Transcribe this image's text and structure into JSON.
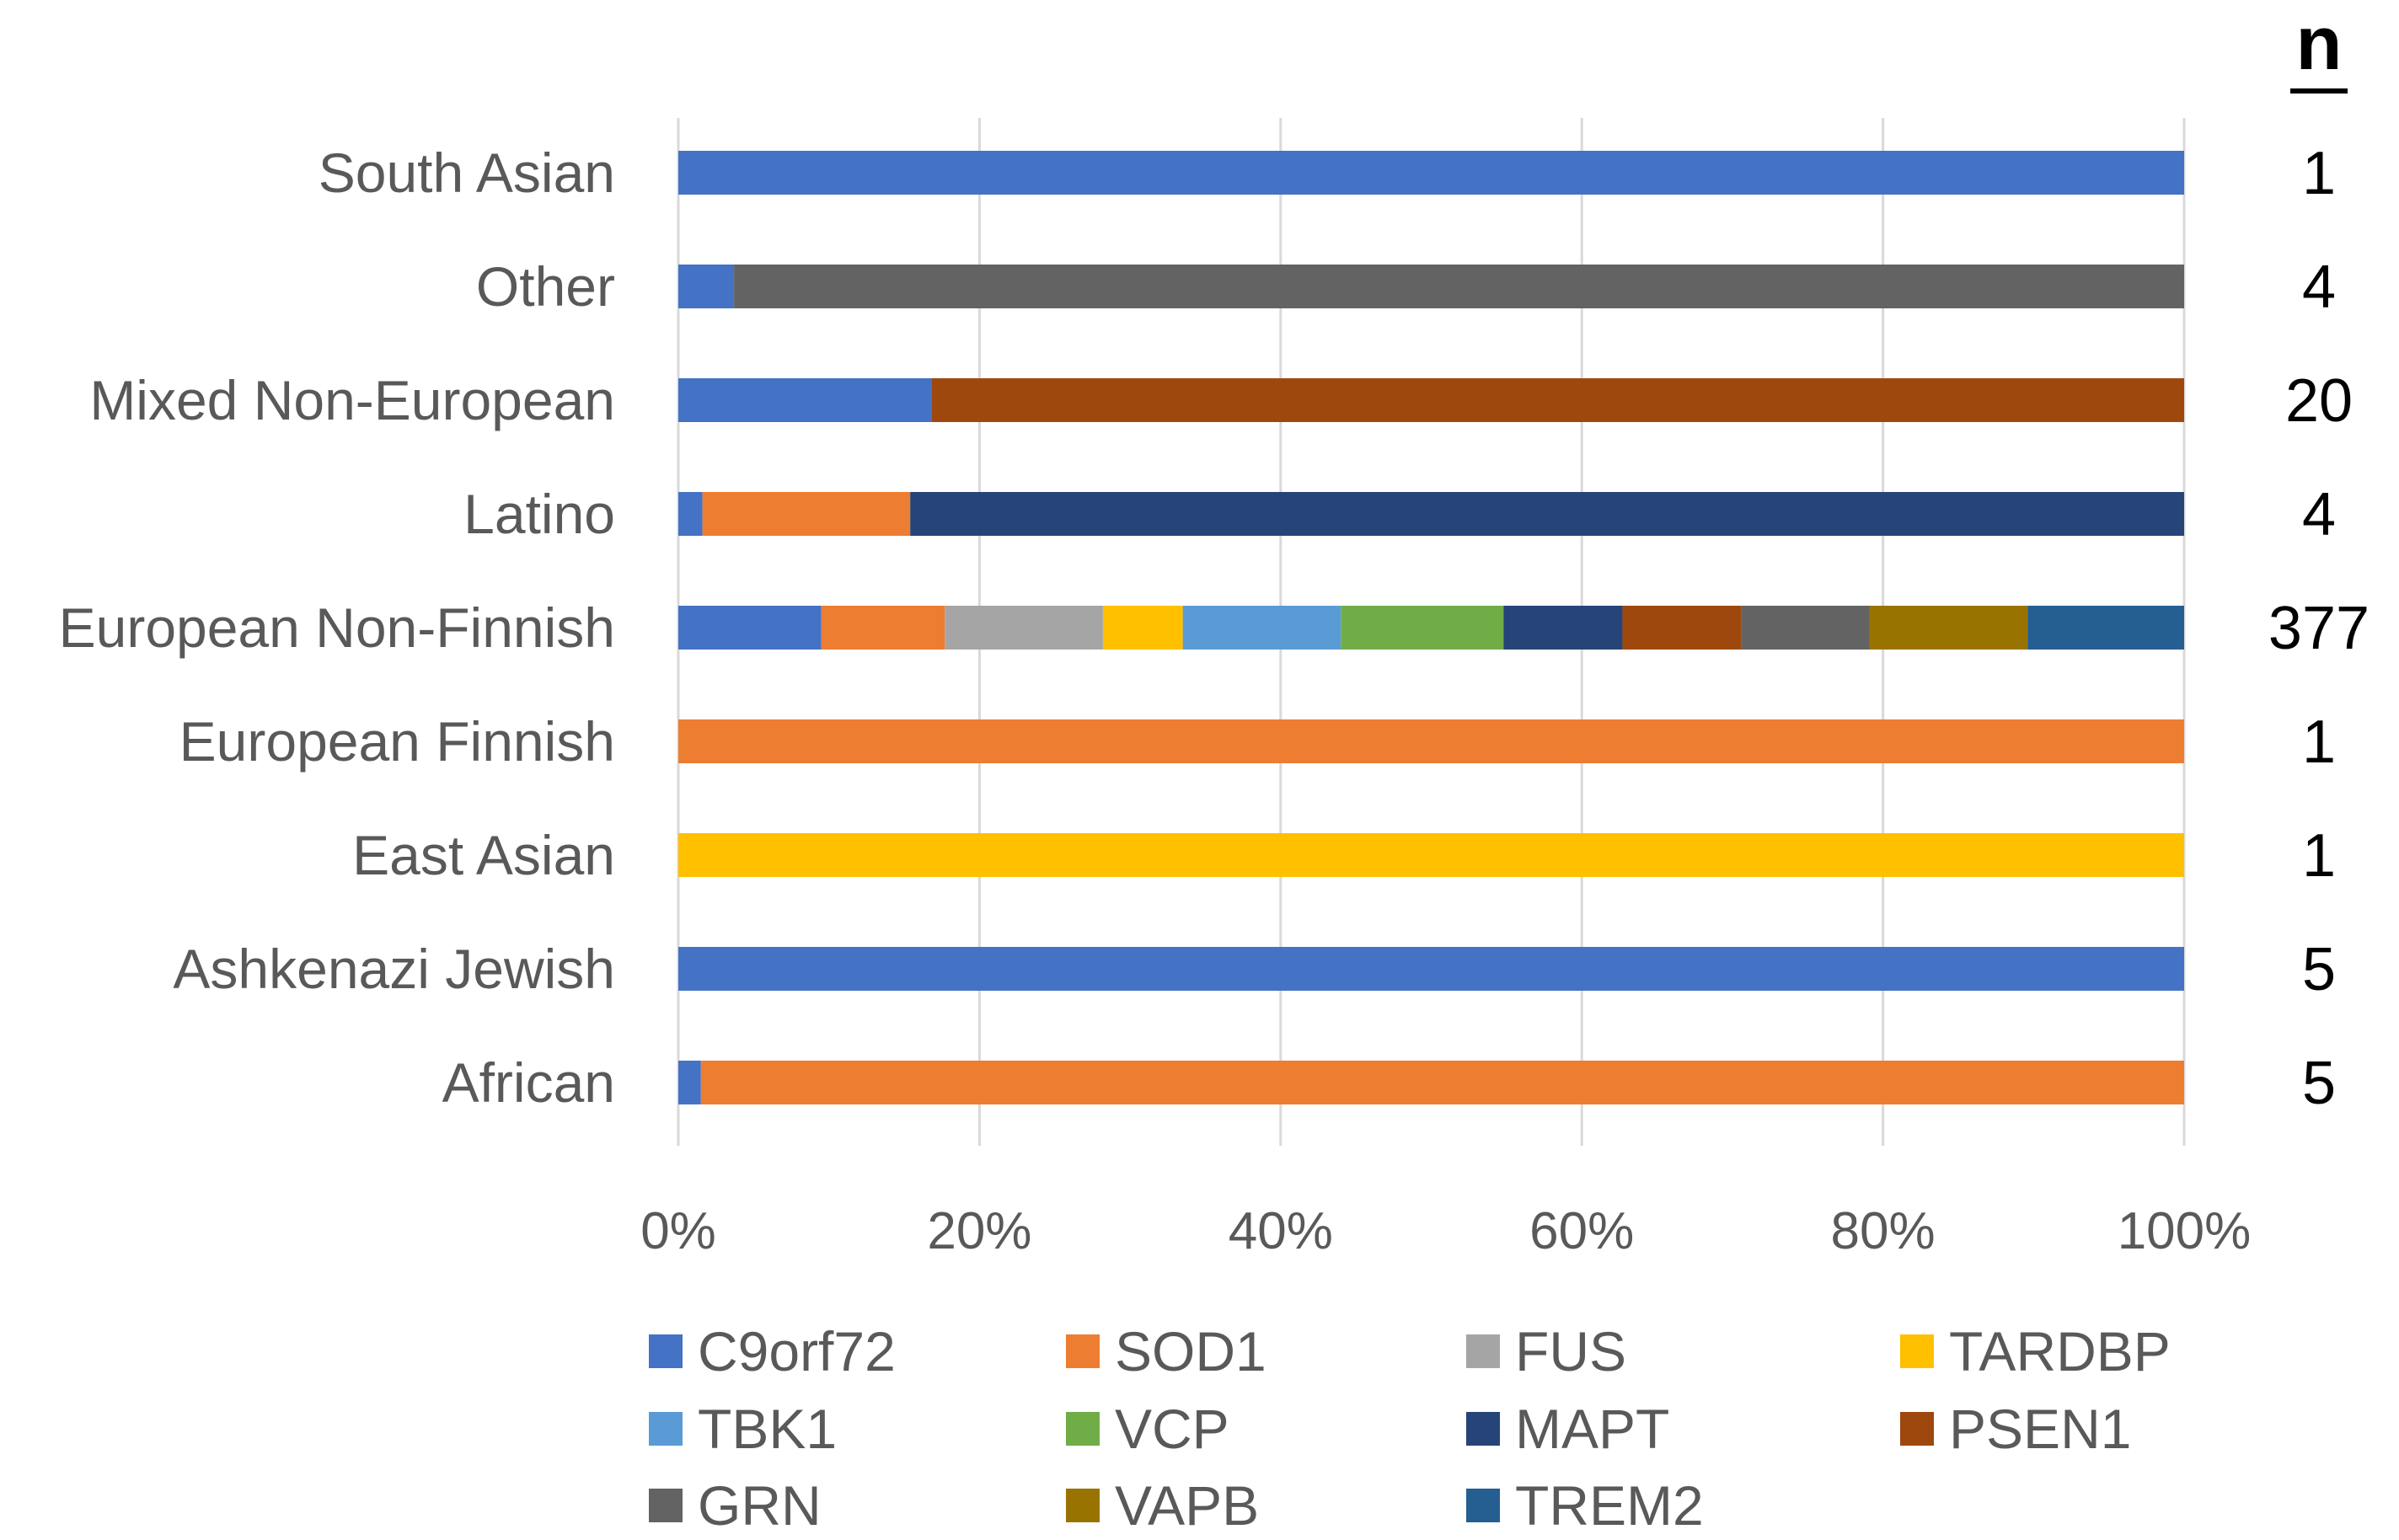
{
  "chart_data": {
    "type": "bar",
    "orientation": "horizontal",
    "stacked": true,
    "normalized": true,
    "categories": [
      "South Asian",
      "Other",
      "Mixed Non-European",
      "Latino",
      "European Non-Finnish",
      "European Finnish",
      "East Asian",
      "Ashkenazi Jewish",
      "African"
    ],
    "n_header": "n",
    "n_values": [
      "1",
      "4",
      "20",
      "4",
      "377",
      "1",
      "1",
      "5",
      "5"
    ],
    "xlim": [
      0,
      100
    ],
    "xticks": [
      "0%",
      "20%",
      "40%",
      "60%",
      "80%",
      "100%"
    ],
    "legend_position": "bottom",
    "series": [
      {
        "name": "C9orf72",
        "color": "#4472c4",
        "values": [
          100,
          3.7,
          16.8,
          1.6,
          9.5,
          0,
          0,
          100,
          1.5
        ]
      },
      {
        "name": "SOD1",
        "color": "#ed7d31",
        "values": [
          0,
          0,
          0,
          13.8,
          8.2,
          100,
          0,
          0,
          98.5
        ]
      },
      {
        "name": "FUS",
        "color": "#a5a5a5",
        "values": [
          0,
          0,
          0,
          0,
          10.5,
          0,
          0,
          0,
          0
        ]
      },
      {
        "name": "TARDBP",
        "color": "#ffc000",
        "values": [
          0,
          0,
          0,
          0,
          5.3,
          0,
          100,
          0,
          0
        ]
      },
      {
        "name": "TBK1",
        "color": "#5b9bd5",
        "values": [
          0,
          0,
          0,
          0,
          10.5,
          0,
          0,
          0,
          0
        ]
      },
      {
        "name": "VCP",
        "color": "#70ad47",
        "values": [
          0,
          0,
          0,
          0,
          10.8,
          0,
          0,
          0,
          0
        ]
      },
      {
        "name": "MAPT",
        "color": "#264478",
        "values": [
          0,
          0,
          0,
          84.6,
          7.9,
          0,
          0,
          0,
          0
        ]
      },
      {
        "name": "PSEN1",
        "color": "#9e480e",
        "values": [
          0,
          0,
          83.2,
          0,
          7.9,
          0,
          0,
          0,
          0
        ]
      },
      {
        "name": "GRN",
        "color": "#636363",
        "values": [
          0,
          96.3,
          0,
          0,
          8.5,
          0,
          0,
          0,
          0
        ]
      },
      {
        "name": "VAPB",
        "color": "#997300",
        "values": [
          0,
          0,
          0,
          0,
          10.5,
          0,
          0,
          0,
          0
        ]
      },
      {
        "name": "TREM2",
        "color": "#255e91",
        "values": [
          0,
          0,
          0,
          0,
          10.4,
          0,
          0,
          0,
          0
        ]
      }
    ]
  }
}
